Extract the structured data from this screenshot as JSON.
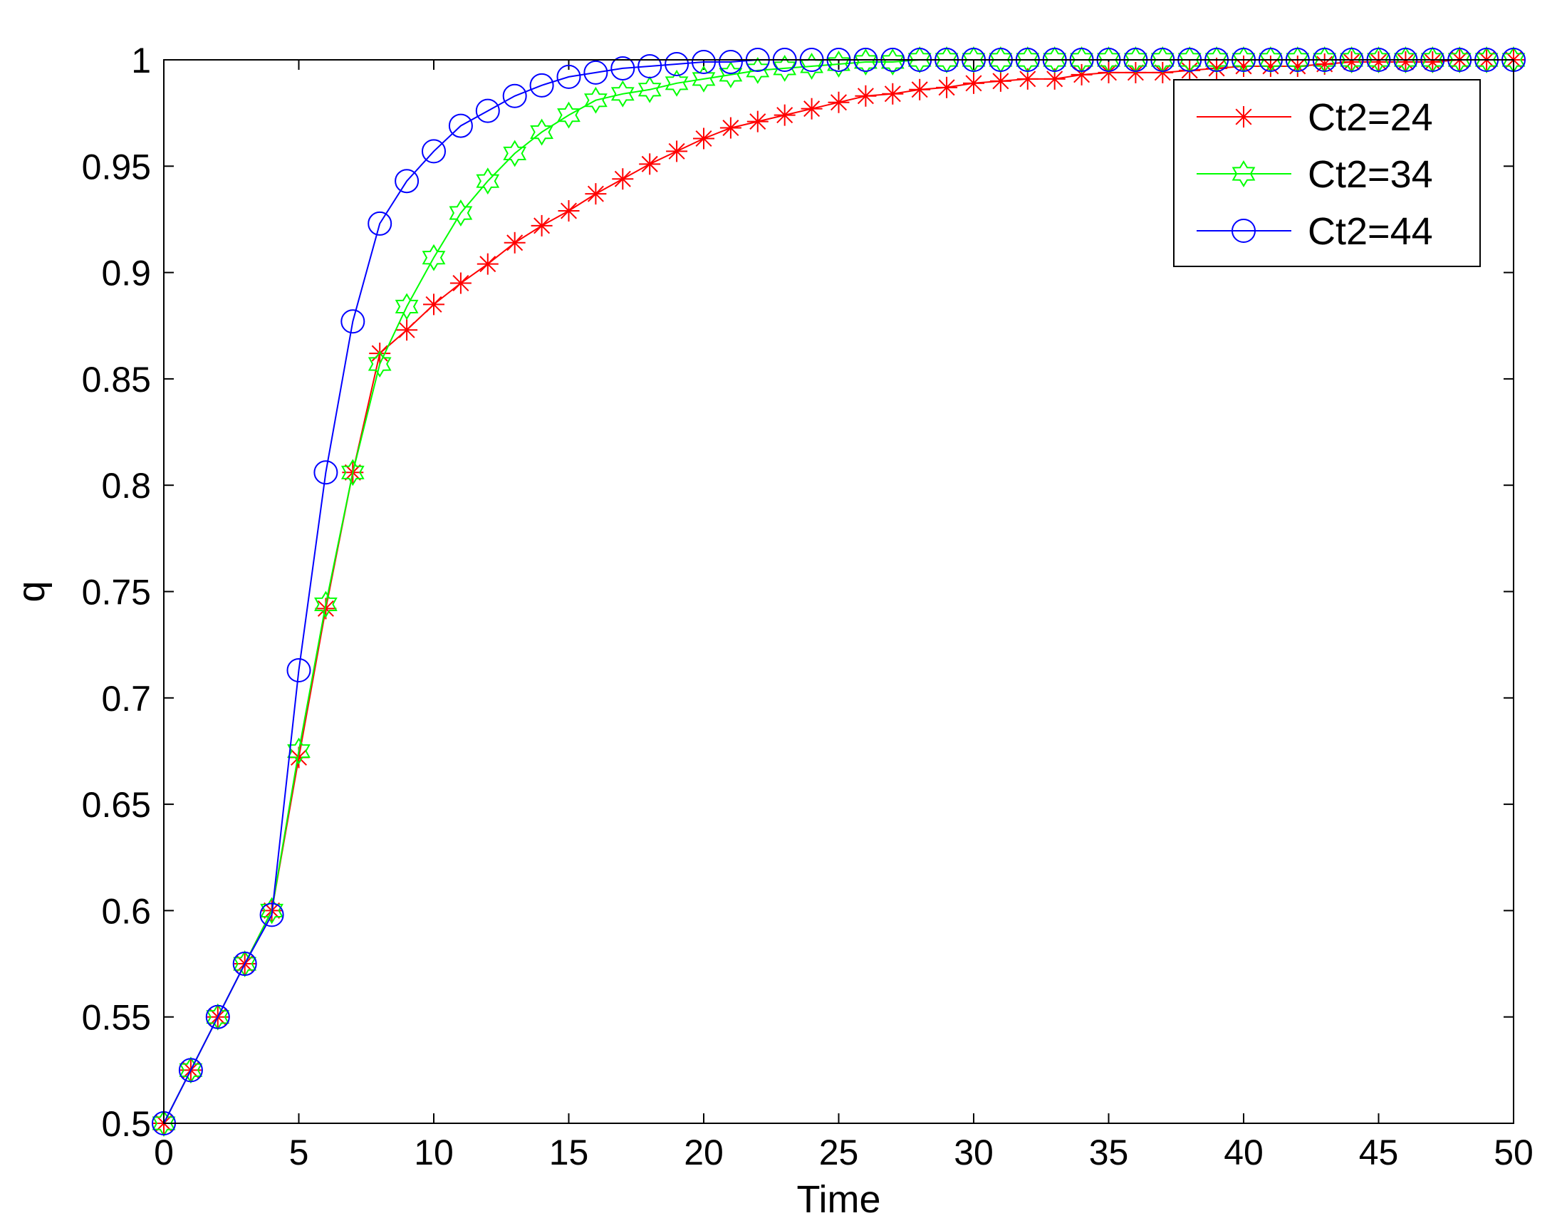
{
  "chart_data": {
    "type": "line",
    "title": "",
    "xlabel": "Time",
    "ylabel": "q",
    "xlim": [
      0,
      50
    ],
    "ylim": [
      0.5,
      1
    ],
    "xticks": [
      0,
      5,
      10,
      15,
      20,
      25,
      30,
      35,
      40,
      45,
      50
    ],
    "xtick_labels": [
      "0",
      "5",
      "10",
      "15",
      "20",
      "25",
      "30",
      "35",
      "40",
      "45",
      "50"
    ],
    "yticks": [
      0.5,
      0.55,
      0.6,
      0.65,
      0.7,
      0.75,
      0.8,
      0.85,
      0.9,
      0.95,
      1
    ],
    "ytick_labels": [
      "0.5",
      "0.55",
      "0.6",
      "0.65",
      "0.7",
      "0.75",
      "0.8",
      "0.85",
      "0.9",
      "0.95",
      "1"
    ],
    "grid": false,
    "legend_position": "top-right",
    "x": [
      0,
      1,
      2,
      3,
      4,
      5,
      6,
      7,
      8,
      9,
      10,
      11,
      12,
      13,
      14,
      15,
      16,
      17,
      18,
      19,
      20,
      21,
      22,
      23,
      24,
      25,
      26,
      27,
      28,
      29,
      30,
      31,
      32,
      33,
      34,
      35,
      36,
      37,
      38,
      39,
      40,
      41,
      42,
      43,
      44,
      45,
      46,
      47,
      48,
      49,
      50
    ],
    "series": [
      {
        "name": "Ct2=24",
        "color": "#ff0000",
        "marker": "asterisk",
        "values": [
          0.5,
          0.525,
          0.55,
          0.575,
          0.6,
          0.672,
          0.742,
          0.806,
          0.862,
          0.873,
          0.885,
          0.895,
          0.904,
          0.914,
          0.922,
          0.929,
          0.937,
          0.944,
          0.951,
          0.957,
          0.963,
          0.968,
          0.971,
          0.974,
          0.977,
          0.98,
          0.983,
          0.984,
          0.986,
          0.987,
          0.989,
          0.99,
          0.991,
          0.991,
          0.993,
          0.994,
          0.994,
          0.994,
          0.995,
          0.996,
          0.997,
          0.997,
          0.997,
          0.998,
          0.999,
          0.999,
          0.999,
          0.999,
          1.0,
          1.0,
          1.0
        ]
      },
      {
        "name": "Ct2=34",
        "color": "#00ff00",
        "marker": "hexagram",
        "values": [
          0.5,
          0.525,
          0.55,
          0.575,
          0.6,
          0.675,
          0.744,
          0.806,
          0.857,
          0.884,
          0.907,
          0.928,
          0.943,
          0.956,
          0.966,
          0.974,
          0.981,
          0.984,
          0.986,
          0.989,
          0.991,
          0.993,
          0.995,
          0.996,
          0.997,
          0.998,
          0.999,
          0.999,
          1.0,
          1.0,
          1.0,
          1.0,
          1.0,
          1.0,
          1.0,
          1.0,
          1.0,
          1.0,
          1.0,
          1.0,
          1.0,
          1.0,
          1.0,
          1.0,
          1.0,
          1.0,
          1.0,
          1.0,
          1.0,
          1.0,
          1.0
        ]
      },
      {
        "name": "Ct2=44",
        "color": "#0000ff",
        "marker": "circle",
        "values": [
          0.5,
          0.525,
          0.55,
          0.575,
          0.598,
          0.713,
          0.806,
          0.877,
          0.923,
          0.943,
          0.957,
          0.969,
          0.976,
          0.983,
          0.988,
          0.992,
          0.994,
          0.996,
          0.997,
          0.998,
          0.999,
          0.999,
          1.0,
          1.0,
          1.0,
          1.0,
          1.0,
          1.0,
          1.0,
          1.0,
          1.0,
          1.0,
          1.0,
          1.0,
          1.0,
          1.0,
          1.0,
          1.0,
          1.0,
          1.0,
          1.0,
          1.0,
          1.0,
          1.0,
          1.0,
          1.0,
          1.0,
          1.0,
          1.0,
          1.0,
          1.0
        ]
      }
    ]
  }
}
